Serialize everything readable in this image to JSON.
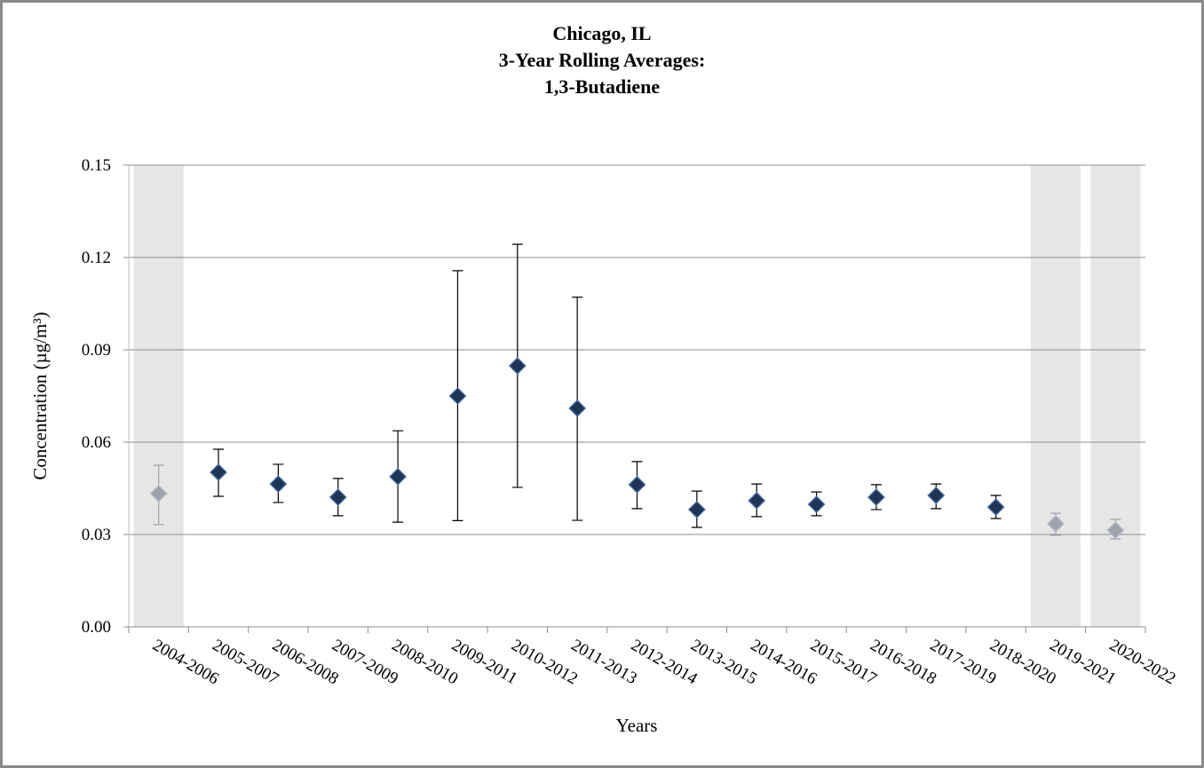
{
  "chart_data": {
    "type": "scatter",
    "title": [
      "Chicago, IL",
      "3-Year Rolling Averages:",
      "1,3-Butadiene"
    ],
    "x_label": "Years",
    "y_label": "Concentration (µg/m³)",
    "categories": [
      "2004-2006",
      "2005-2007",
      "2006-2008",
      "2007-2009",
      "2008-2010",
      "2009-2011",
      "2010-2012",
      "2011-2013",
      "2012-2014",
      "2013-2015",
      "2014-2016",
      "2015-2017",
      "2016-2018",
      "2017-2019",
      "2018-2020",
      "2019-2021",
      "2020-2022"
    ],
    "values": [
      0.0433,
      0.0502,
      0.0464,
      0.0421,
      0.0488,
      0.075,
      0.0848,
      0.071,
      0.0462,
      0.0381,
      0.041,
      0.0398,
      0.0421,
      0.0427,
      0.0389,
      0.0335,
      0.0314
    ],
    "error_plus": [
      0.0092,
      0.0075,
      0.0064,
      0.0061,
      0.0149,
      0.0407,
      0.0395,
      0.0361,
      0.0075,
      0.006,
      0.0054,
      0.004,
      0.0041,
      0.0037,
      0.0038,
      0.0034,
      0.0035
    ],
    "error_minus": [
      0.0101,
      0.0078,
      0.006,
      0.006,
      0.0148,
      0.0405,
      0.0395,
      0.0364,
      0.0078,
      0.0058,
      0.0052,
      0.0037,
      0.004,
      0.0043,
      0.0037,
      0.0038,
      0.0028
    ],
    "color": "#1f3556",
    "shaded_color": "#9ca3ad",
    "shaded": [
      0,
      15,
      16
    ],
    "ylim": [
      0,
      0.15
    ],
    "yticks": [
      {
        "value": 0,
        "label": "0.00"
      },
      {
        "value": 0.03,
        "label": "0.03"
      },
      {
        "value": 0.06,
        "label": "0.06"
      },
      {
        "value": 0.09,
        "label": "0.09"
      },
      {
        "value": 0.12,
        "label": "0.12"
      },
      {
        "value": 0.15,
        "label": "0.15"
      }
    ],
    "grid": true
  }
}
